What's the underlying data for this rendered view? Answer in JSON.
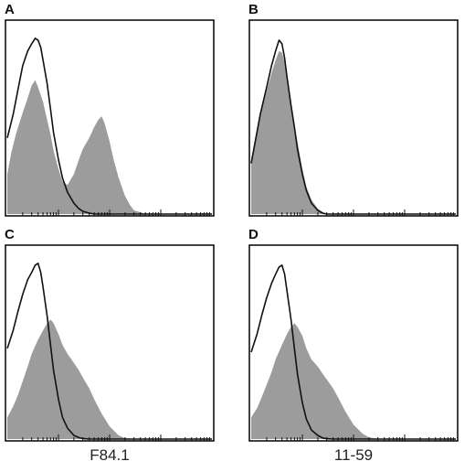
{
  "chart_data": [
    {
      "type": "area",
      "panel_label": "A",
      "x_scale": "log",
      "xlim": [
        1,
        10000
      ],
      "column_label": "F84.1",
      "series": [
        {
          "role": "filled",
          "x": [
            1,
            1.2,
            1.5,
            2,
            2.5,
            3,
            3.5,
            4,
            5,
            6,
            7,
            8,
            10,
            12,
            15,
            20,
            25,
            30,
            40,
            50,
            60,
            70,
            80,
            100,
            120,
            150,
            200,
            250,
            300,
            400,
            500,
            700,
            1000,
            1500,
            2000,
            3000,
            5000,
            10000
          ],
          "y": [
            0.22,
            0.34,
            0.45,
            0.56,
            0.64,
            0.71,
            0.74,
            0.7,
            0.62,
            0.52,
            0.44,
            0.35,
            0.25,
            0.18,
            0.16,
            0.22,
            0.3,
            0.36,
            0.42,
            0.48,
            0.52,
            0.54,
            0.5,
            0.4,
            0.3,
            0.2,
            0.1,
            0.05,
            0.02,
            0.01,
            0,
            0,
            0,
            0,
            0,
            0,
            0,
            0
          ]
        },
        {
          "role": "outline",
          "x": [
            1,
            1.3,
            1.6,
            2,
            2.5,
            3,
            3.5,
            4,
            4.5,
            5,
            6,
            7,
            8,
            10,
            12,
            15,
            20,
            25,
            30,
            40,
            50,
            70,
            100,
            150,
            200,
            300,
            1000,
            10000
          ],
          "y": [
            0.42,
            0.55,
            0.68,
            0.82,
            0.9,
            0.94,
            0.97,
            0.96,
            0.92,
            0.85,
            0.72,
            0.58,
            0.45,
            0.3,
            0.2,
            0.12,
            0.06,
            0.03,
            0.015,
            0.005,
            0,
            0,
            0,
            0,
            0,
            0,
            0,
            0
          ]
        }
      ]
    },
    {
      "type": "area",
      "panel_label": "B",
      "x_scale": "log",
      "xlim": [
        1,
        10000
      ],
      "column_label": "11-59",
      "series": [
        {
          "role": "filled",
          "x": [
            1,
            1.2,
            1.5,
            2,
            2.5,
            3,
            3.5,
            4,
            4.5,
            5,
            6,
            7,
            8,
            10,
            12,
            15,
            20,
            25,
            30,
            40,
            50,
            70,
            100,
            1000,
            10000
          ],
          "y": [
            0.3,
            0.42,
            0.55,
            0.68,
            0.78,
            0.85,
            0.9,
            0.89,
            0.84,
            0.76,
            0.62,
            0.5,
            0.4,
            0.25,
            0.15,
            0.08,
            0.03,
            0.01,
            0,
            0,
            0,
            0,
            0,
            0,
            0
          ]
        },
        {
          "role": "outline",
          "x": [
            1,
            1.2,
            1.5,
            2,
            2.5,
            3,
            3.5,
            4,
            4.5,
            5,
            6,
            7,
            8,
            10,
            12,
            15,
            20,
            25,
            30,
            40,
            50,
            70,
            100,
            1000,
            10000
          ],
          "y": [
            0.28,
            0.4,
            0.55,
            0.7,
            0.82,
            0.9,
            0.96,
            0.94,
            0.86,
            0.76,
            0.6,
            0.48,
            0.36,
            0.22,
            0.13,
            0.06,
            0.02,
            0.005,
            0,
            0,
            0,
            0,
            0,
            0,
            0
          ]
        }
      ]
    },
    {
      "type": "area",
      "panel_label": "C",
      "x_scale": "log",
      "xlim": [
        1,
        10000
      ],
      "column_label": "F84.1",
      "series": [
        {
          "role": "filled",
          "x": [
            1,
            1.3,
            1.6,
            2,
            2.5,
            3,
            4,
            5,
            6,
            7,
            8,
            10,
            12,
            15,
            20,
            25,
            30,
            40,
            50,
            70,
            100,
            150,
            200,
            300,
            500,
            1000,
            10000
          ],
          "y": [
            0.12,
            0.18,
            0.24,
            0.32,
            0.4,
            0.47,
            0.55,
            0.6,
            0.64,
            0.66,
            0.64,
            0.58,
            0.52,
            0.47,
            0.42,
            0.38,
            0.34,
            0.28,
            0.22,
            0.14,
            0.07,
            0.02,
            0.005,
            0,
            0,
            0,
            0
          ]
        },
        {
          "role": "outline",
          "x": [
            1,
            1.3,
            1.6,
            2,
            2.5,
            3,
            3.5,
            4,
            4.5,
            5,
            6,
            7,
            8,
            10,
            12,
            15,
            20,
            25,
            30,
            40,
            50,
            100,
            1000,
            10000
          ],
          "y": [
            0.5,
            0.6,
            0.7,
            0.8,
            0.88,
            0.92,
            0.96,
            0.97,
            0.92,
            0.84,
            0.68,
            0.52,
            0.38,
            0.22,
            0.12,
            0.06,
            0.02,
            0.008,
            0.003,
            0,
            0,
            0,
            0,
            0
          ]
        }
      ]
    },
    {
      "type": "area",
      "panel_label": "D",
      "x_scale": "log",
      "xlim": [
        1,
        10000
      ],
      "column_label": "11-59",
      "series": [
        {
          "role": "filled",
          "x": [
            1,
            1.3,
            1.6,
            2,
            2.5,
            3,
            4,
            5,
            6,
            7,
            8,
            10,
            12,
            15,
            20,
            25,
            30,
            40,
            50,
            70,
            100,
            150,
            200,
            300,
            500,
            1000,
            10000
          ],
          "y": [
            0.12,
            0.17,
            0.23,
            0.3,
            0.37,
            0.44,
            0.52,
            0.58,
            0.62,
            0.64,
            0.62,
            0.57,
            0.5,
            0.44,
            0.4,
            0.36,
            0.33,
            0.28,
            0.23,
            0.15,
            0.08,
            0.03,
            0.01,
            0,
            0,
            0,
            0
          ]
        },
        {
          "role": "outline",
          "x": [
            1,
            1.3,
            1.6,
            2,
            2.5,
            3,
            3.5,
            4,
            4.5,
            5,
            6,
            7,
            8,
            10,
            12,
            15,
            20,
            25,
            30,
            40,
            50,
            100,
            1000,
            10000
          ],
          "y": [
            0.48,
            0.58,
            0.68,
            0.78,
            0.86,
            0.91,
            0.95,
            0.96,
            0.91,
            0.82,
            0.66,
            0.5,
            0.36,
            0.2,
            0.11,
            0.05,
            0.02,
            0.006,
            0.002,
            0,
            0,
            0,
            0,
            0
          ]
        }
      ]
    }
  ],
  "panels": [
    {
      "letter": "A"
    },
    {
      "letter": "B"
    },
    {
      "letter": "C"
    },
    {
      "letter": "D"
    }
  ],
  "captions": {
    "left": "F84.1",
    "right": "11-59"
  },
  "colors": {
    "filled": "#9c9c9c",
    "outline": "#111111",
    "axis": "#111111"
  }
}
